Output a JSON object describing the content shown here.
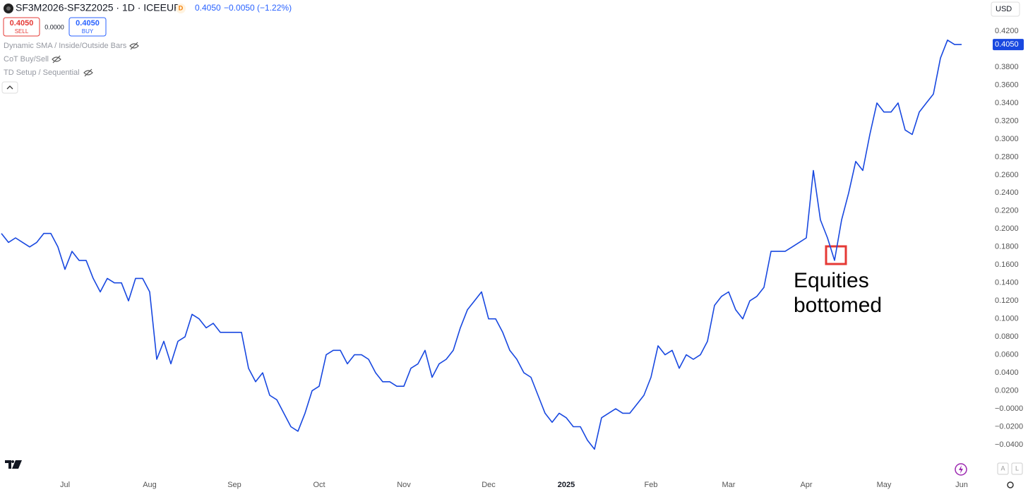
{
  "header": {
    "symbol": "SF3M2026-SF3Z2025 · 1D · ICEEUR",
    "badge": "D",
    "price": "0.4050",
    "change": "−0.0050 (−1.22%)",
    "sell_price": "0.4050",
    "sell": "SELL",
    "spread": "0.0000",
    "buy_price": "0.4050",
    "buy": "BUY",
    "currency": "USD"
  },
  "indicators": [
    "Dynamic SMA / Inside/Outside Bars",
    "CoT Buy/Sell",
    "TD Setup / Sequential"
  ],
  "buttons": [
    "A",
    "L"
  ],
  "chart_data": {
    "type": "line",
    "annotation": [
      "Equities",
      "bottomed"
    ],
    "price_label": "0.4050",
    "categories": [
      null,
      null,
      null,
      null,
      null,
      null,
      null,
      null,
      null,
      "Jul",
      null,
      null,
      null,
      null,
      null,
      null,
      null,
      null,
      null,
      null,
      null,
      "Aug",
      null,
      null,
      null,
      null,
      null,
      null,
      null,
      null,
      null,
      null,
      null,
      "Sep",
      null,
      null,
      null,
      null,
      null,
      null,
      null,
      null,
      null,
      null,
      null,
      "Oct",
      null,
      null,
      null,
      null,
      null,
      null,
      null,
      null,
      null,
      null,
      null,
      "Nov",
      null,
      null,
      null,
      null,
      null,
      null,
      null,
      null,
      null,
      null,
      null,
      "Dec",
      null,
      null,
      null,
      null,
      null,
      null,
      null,
      null,
      null,
      null,
      "2025",
      null,
      null,
      null,
      null,
      null,
      null,
      null,
      null,
      null,
      null,
      null,
      "Feb",
      null,
      null,
      null,
      null,
      null,
      null,
      null,
      null,
      null,
      null,
      "Mar",
      null,
      null,
      null,
      null,
      null,
      null,
      null,
      null,
      null,
      null,
      "Apr",
      null,
      null,
      null,
      null,
      null,
      null,
      null,
      null,
      null,
      null,
      "May",
      null,
      null,
      null,
      null,
      null,
      null,
      null,
      null,
      null,
      null,
      "Jun"
    ],
    "series": [
      {
        "color": "#1848e0",
        "values": [
          0.195,
          0.185,
          0.19,
          0.185,
          0.18,
          0.185,
          0.195,
          0.195,
          0.18,
          0.155,
          0.175,
          0.165,
          0.165,
          0.145,
          0.13,
          0.145,
          0.14,
          0.14,
          0.12,
          0.145,
          0.145,
          0.13,
          0.055,
          0.075,
          0.05,
          0.075,
          0.08,
          0.105,
          0.1,
          0.09,
          0.095,
          0.085,
          0.085,
          0.085,
          0.085,
          0.045,
          0.03,
          0.04,
          0.015,
          0.01,
          -0.005,
          -0.02,
          -0.025,
          -0.005,
          0.02,
          0.025,
          0.06,
          0.065,
          0.065,
          0.05,
          0.06,
          0.06,
          0.055,
          0.04,
          0.03,
          0.03,
          0.025,
          0.025,
          0.045,
          0.05,
          0.065,
          0.035,
          0.05,
          0.055,
          0.065,
          0.09,
          0.11,
          0.12,
          0.13,
          0.1,
          0.1,
          0.085,
          0.065,
          0.055,
          0.04,
          0.035,
          0.015,
          -0.005,
          -0.015,
          -0.005,
          -0.01,
          -0.02,
          -0.02,
          -0.035,
          -0.045,
          -0.01,
          -0.005,
          0.0,
          -0.005,
          -0.005,
          0.005,
          0.015,
          0.035,
          0.07,
          0.06,
          0.065,
          0.045,
          0.06,
          0.055,
          0.06,
          0.075,
          0.115,
          0.125,
          0.13,
          0.11,
          0.1,
          0.12,
          0.125,
          0.135,
          0.175,
          0.175,
          0.175,
          0.18,
          0.185,
          0.19,
          0.265,
          0.21,
          0.19,
          0.165,
          0.21,
          0.24,
          0.275,
          0.265,
          0.305,
          0.34,
          0.33,
          0.33,
          0.34,
          0.31,
          0.305,
          0.33,
          0.34,
          0.35,
          0.39,
          0.41,
          0.405,
          0.405
        ]
      }
    ],
    "ylim": [
      -0.075,
      0.43
    ],
    "yticks": [
      {
        "value": 0.42,
        "label": "0.4200"
      },
      {
        "value": 0.38,
        "label": "0.3800"
      },
      {
        "value": 0.36,
        "label": "0.3600"
      },
      {
        "value": 0.34,
        "label": "0.3400"
      },
      {
        "value": 0.32,
        "label": "0.3200"
      },
      {
        "value": 0.3,
        "label": "0.3000"
      },
      {
        "value": 0.28,
        "label": "0.2800"
      },
      {
        "value": 0.26,
        "label": "0.2600"
      },
      {
        "value": 0.24,
        "label": "0.2400"
      },
      {
        "value": 0.22,
        "label": "0.2200"
      },
      {
        "value": 0.2,
        "label": "0.2000"
      },
      {
        "value": 0.18,
        "label": "0.1800"
      },
      {
        "value": 0.16,
        "label": "0.1600"
      },
      {
        "value": 0.14,
        "label": "0.1400"
      },
      {
        "value": 0.12,
        "label": "0.1200"
      },
      {
        "value": 0.1,
        "label": "0.1000"
      },
      {
        "value": 0.08,
        "label": "0.0800"
      },
      {
        "value": 0.06,
        "label": "0.0600"
      },
      {
        "value": 0.04,
        "label": "0.0400"
      },
      {
        "value": 0.02,
        "label": "0.0200"
      },
      {
        "value": 0,
        "label": "−0.0000"
      },
      {
        "value": -0.02,
        "label": "−0.0200"
      },
      {
        "value": -0.04,
        "label": "−0.0400"
      }
    ],
    "grid": false
  }
}
